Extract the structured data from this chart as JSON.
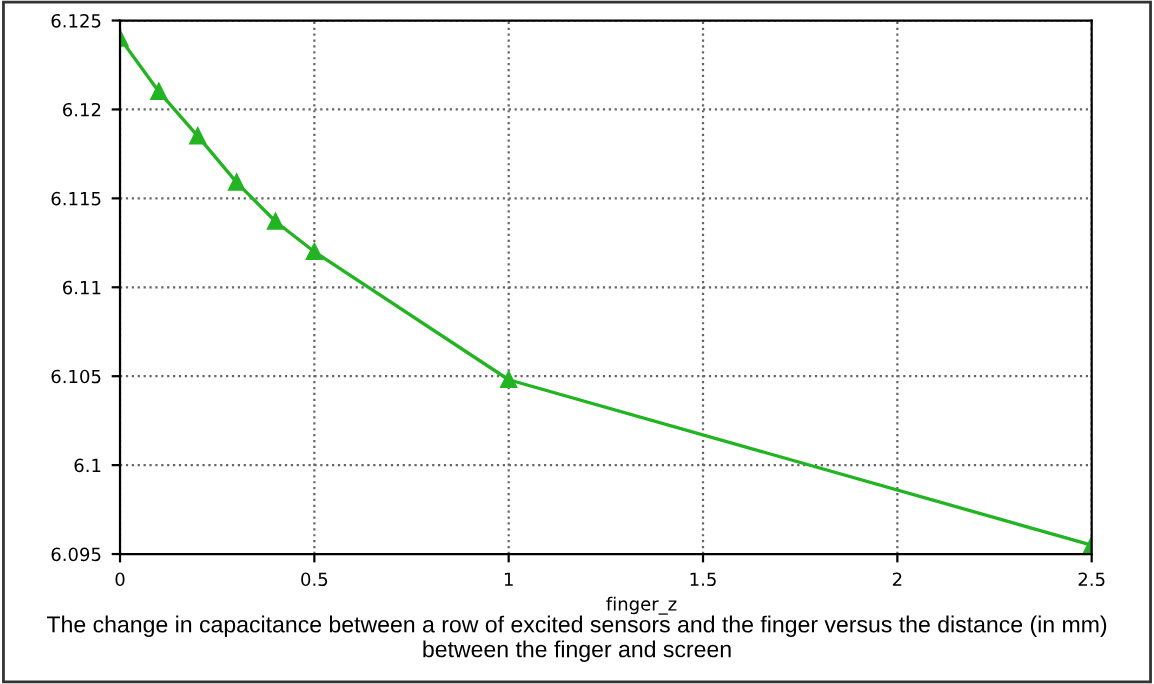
{
  "chart_data": {
    "type": "line",
    "xlabel": "finger_z",
    "x": [
      0,
      0.1,
      0.2,
      0.3,
      0.4,
      0.5,
      1,
      2.5
    ],
    "series": [
      {
        "color": "#22b422",
        "values": [
          6.124,
          6.121,
          6.1185,
          6.1159,
          6.1137,
          6.112,
          6.1048,
          6.0955
        ]
      }
    ],
    "xlim": [
      0,
      2.5
    ],
    "xticks": [
      0,
      0.5,
      1,
      1.5,
      2,
      2.5
    ],
    "ylim": [
      6.095,
      6.125
    ],
    "yticks": [
      6.095,
      6.1,
      6.105,
      6.11,
      6.115,
      6.12,
      6.125
    ],
    "grid": true,
    "marker": "triangle",
    "line_style": "solid",
    "annotations": [
      "The change in capacitance between a row of excited sensors and the finger versus the distance (in mm) between the finger and screen"
    ]
  }
}
